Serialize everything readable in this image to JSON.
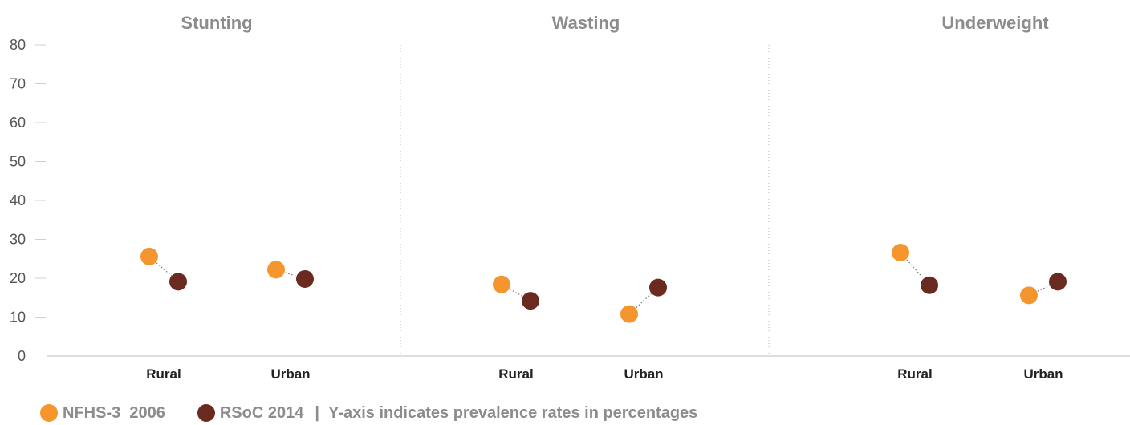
{
  "chart_data": {
    "type": "scatter",
    "ylim": [
      0,
      80
    ],
    "yticks": [
      "0",
      "10",
      "20",
      "30",
      "40",
      "50",
      "60",
      "70",
      "80"
    ],
    "panels": [
      {
        "title": "Stunting",
        "categories": [
          "Rural",
          "Urban"
        ]
      },
      {
        "title": "Wasting",
        "categories": [
          "Rural",
          "Urban"
        ]
      },
      {
        "title": "Underweight",
        "categories": [
          "Rural",
          "Urban"
        ]
      }
    ],
    "series": [
      {
        "name": "NFHS-3  2006",
        "color": "#f4962d",
        "values": [
          [
            25.6,
            22.2
          ],
          [
            18.4,
            10.8
          ],
          [
            26.6,
            15.6
          ]
        ]
      },
      {
        "name": "RSoC 2014",
        "color": "#6b2a20",
        "values": [
          [
            19.1,
            19.8
          ],
          [
            14.2,
            17.6
          ],
          [
            18.2,
            19.1
          ]
        ]
      }
    ],
    "note": "Y-axis indicates prevalence rates in percentages",
    "grid": false
  }
}
